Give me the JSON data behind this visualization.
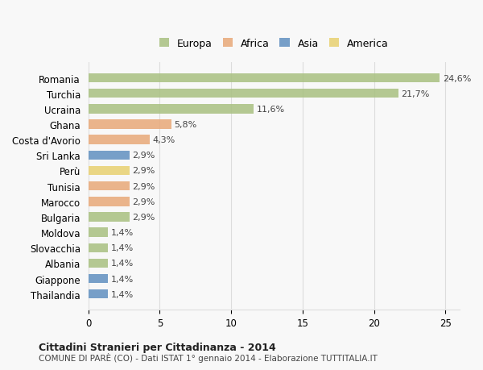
{
  "categories": [
    "Romania",
    "Turchia",
    "Ucraina",
    "Ghana",
    "Costa d'Avorio",
    "Sri Lanka",
    "Perù",
    "Tunisia",
    "Marocco",
    "Bulgaria",
    "Moldova",
    "Slovacchia",
    "Albania",
    "Giappone",
    "Thailandia"
  ],
  "values": [
    24.6,
    21.7,
    11.6,
    5.8,
    4.3,
    2.9,
    2.9,
    2.9,
    2.9,
    2.9,
    1.4,
    1.4,
    1.4,
    1.4,
    1.4
  ],
  "labels": [
    "24,6%",
    "21,7%",
    "11,6%",
    "5,8%",
    "4,3%",
    "2,9%",
    "2,9%",
    "2,9%",
    "2,9%",
    "2,9%",
    "1,4%",
    "1,4%",
    "1,4%",
    "1,4%",
    "1,4%"
  ],
  "continents": [
    "Europa",
    "Europa",
    "Europa",
    "Africa",
    "Africa",
    "Asia",
    "America",
    "Africa",
    "Africa",
    "Europa",
    "Europa",
    "Europa",
    "Europa",
    "Asia",
    "Asia"
  ],
  "colors": {
    "Europa": "#a8c080",
    "Africa": "#e8a878",
    "Asia": "#6090c0",
    "America": "#e8d070"
  },
  "legend_order": [
    "Europa",
    "Africa",
    "Asia",
    "America"
  ],
  "title": "Cittadini Stranieri per Cittadinanza - 2014",
  "subtitle": "COMUNE DI PARÈ (CO) - Dati ISTAT 1° gennaio 2014 - Elaborazione TUTTITALIA.IT",
  "xlim": [
    0,
    26
  ],
  "xticks": [
    0,
    5,
    10,
    15,
    20,
    25
  ],
  "background_color": "#f8f8f8",
  "grid_color": "#dddddd"
}
